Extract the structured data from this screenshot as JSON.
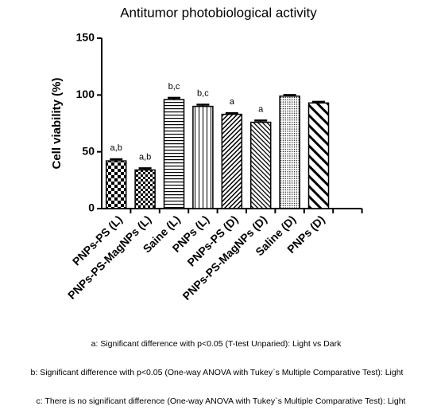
{
  "chart_data": {
    "type": "bar",
    "title": "Antitumor photobiological activity",
    "y_label": "Cell viability (%)",
    "categories": [
      "PNPs-PS (L)",
      "PNPs-PS-MagNPs (L)",
      "Saine (L)",
      "PNPs (L)",
      "PNPs-PS (D)",
      "PNPs-PS-MagNPs (D)",
      "Saline (D)",
      "PNPs (D)"
    ],
    "values": [
      42,
      34,
      96,
      90,
      83,
      76,
      99,
      93
    ],
    "errors": [
      1.5,
      1.5,
      1.5,
      1.5,
      1,
      1.5,
      1,
      1
    ],
    "annotations": [
      "a,b",
      "a,b",
      "b,c",
      "b,c",
      "a",
      "a",
      null,
      null
    ],
    "patterns": [
      "checker",
      "checker-fine",
      "horizontal",
      "vertical",
      "diagonal-fine",
      "diagonal-back",
      "dots",
      "diagonal-wide"
    ],
    "color": "#000000",
    "ylim": [
      0,
      150
    ],
    "yticks": [
      0,
      50,
      100,
      150
    ],
    "footnotes": [
      "a: Significant difference with p<0.05 (T-test Unparied): Light vs Dark",
      "b: Significant difference with p<0.05 (One-way ANOVA with Tukey`s Multiple Comparative Test): Light",
      "c: There is no significant difference (One-way ANOVA with Tukey`s Multiple Comparative Test): Light"
    ]
  }
}
